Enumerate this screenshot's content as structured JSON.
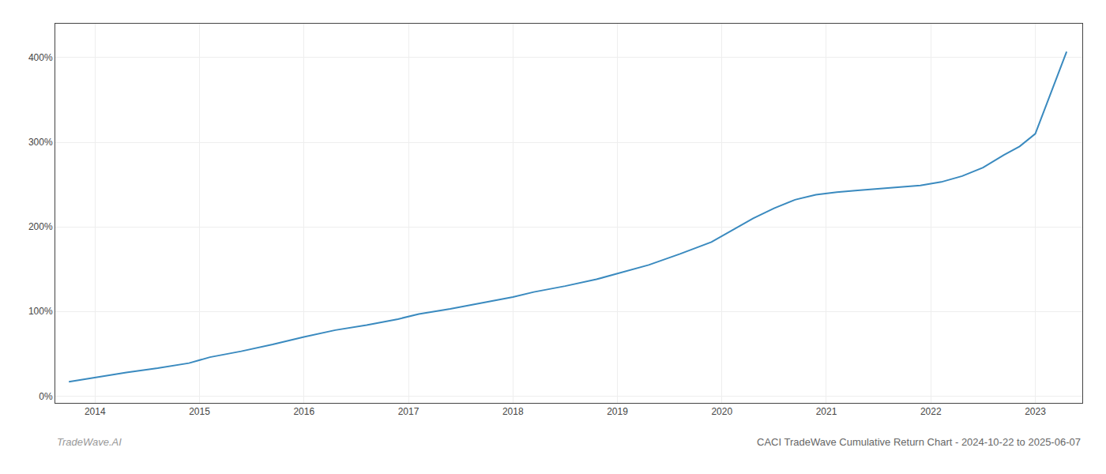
{
  "chart_data": {
    "type": "line",
    "title": "CACI TradeWave Cumulative Return Chart - 2024-10-22 to 2025-06-07",
    "annotations": [
      "TradeWave.AI"
    ],
    "color": "#3a8abf",
    "grid": true,
    "xlim": [
      2013.62,
      2023.45
    ],
    "ylim": [
      -8,
      440
    ],
    "xticks": [
      2014,
      2015,
      2016,
      2017,
      2018,
      2019,
      2020,
      2021,
      2022,
      2023
    ],
    "yticks": [
      {
        "value": 0,
        "label": "0%"
      },
      {
        "value": 100,
        "label": "100%"
      },
      {
        "value": 200,
        "label": "200%"
      },
      {
        "value": 300,
        "label": "300%"
      },
      {
        "value": 400,
        "label": "400%"
      }
    ],
    "x": [
      2013.75,
      2014.0,
      2014.3,
      2014.6,
      2014.9,
      2015.1,
      2015.4,
      2015.7,
      2016.0,
      2016.3,
      2016.6,
      2016.9,
      2017.1,
      2017.4,
      2017.7,
      2018.0,
      2018.2,
      2018.5,
      2018.8,
      2019.0,
      2019.3,
      2019.6,
      2019.9,
      2020.1,
      2020.3,
      2020.5,
      2020.7,
      2020.9,
      2021.1,
      2021.3,
      2021.5,
      2021.7,
      2021.9,
      2022.1,
      2022.3,
      2022.5,
      2022.7,
      2022.85,
      2023.0,
      2023.3
    ],
    "values": [
      17,
      22,
      28,
      33,
      39,
      46,
      53,
      61,
      70,
      78,
      84,
      91,
      97,
      103,
      110,
      117,
      123,
      130,
      138,
      145,
      155,
      168,
      182,
      196,
      210,
      222,
      232,
      238,
      241,
      243,
      245,
      247,
      249,
      253,
      260,
      270,
      285,
      295,
      310,
      407
    ]
  }
}
